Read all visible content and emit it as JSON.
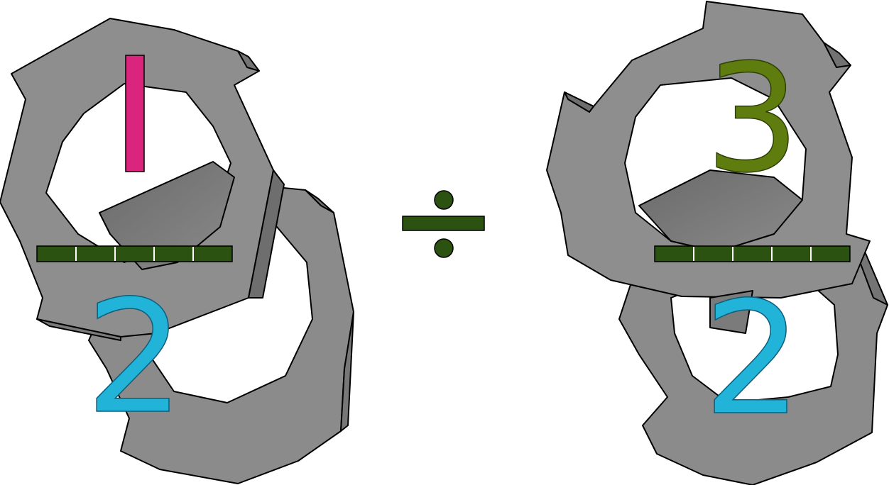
{
  "operator": "÷",
  "left_fraction": {
    "numerator": "1",
    "denominator": "2",
    "numerator_color": "#d9257d",
    "denominator_color": "#22b3d8",
    "bar_segments": 5
  },
  "right_fraction": {
    "numerator": "3",
    "denominator": "2",
    "numerator_color": "#5e7d0e",
    "denominator_color": "#22b3d8",
    "bar_segments": 5
  },
  "colors": {
    "bar": "#2b5210",
    "bar_divider": "#ffffff",
    "operator": "#2b5210",
    "block_fill": "#8c8c8c",
    "block_shade": "#6f6f6f",
    "outline": "#000000"
  }
}
